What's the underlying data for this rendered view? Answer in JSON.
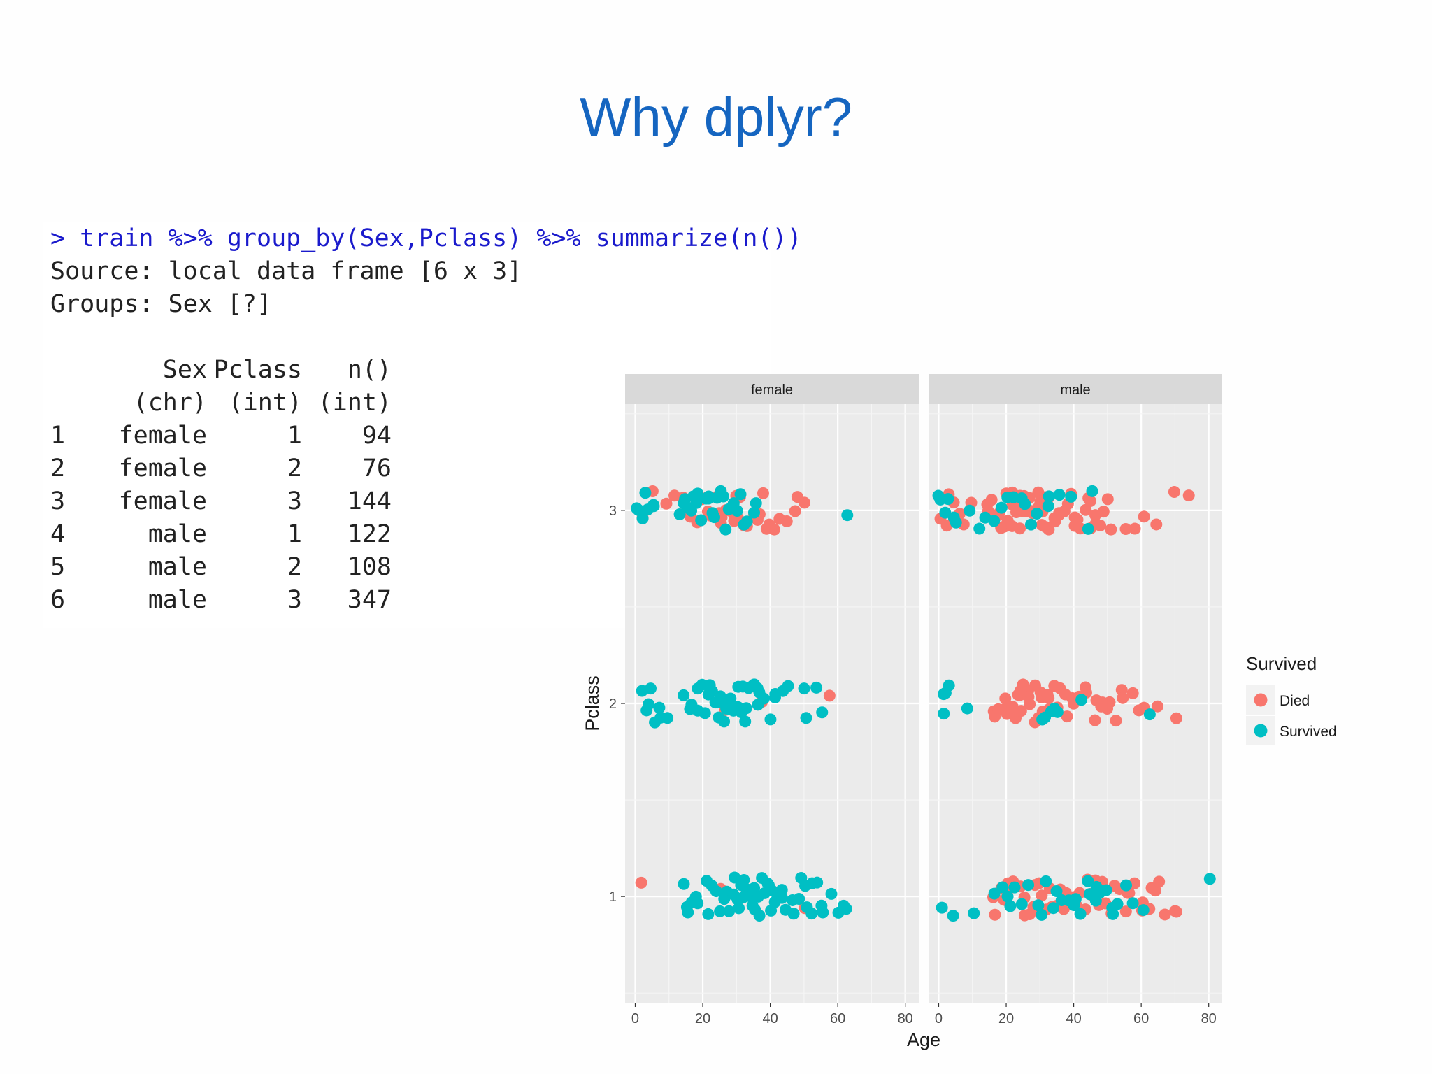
{
  "slide": {
    "title": "Why dplyr?"
  },
  "console": {
    "command": "> train %>% group_by(Sex,Pclass) %>% summarize(n())",
    "source_line": "Source: local data frame [6 x 3]",
    "groups_line": "Groups: Sex [?]",
    "columns": [
      "Sex",
      "Pclass",
      "n()"
    ],
    "column_types": [
      "(chr)",
      "(int)",
      "(int)"
    ],
    "rows": [
      {
        "idx": "1",
        "sex": "female",
        "pclass": "1",
        "n": "94"
      },
      {
        "idx": "2",
        "sex": "female",
        "pclass": "2",
        "n": "76"
      },
      {
        "idx": "3",
        "sex": "female",
        "pclass": "3",
        "n": "144"
      },
      {
        "idx": "4",
        "sex": "male",
        "pclass": "1",
        "n": "122"
      },
      {
        "idx": "5",
        "sex": "male",
        "pclass": "2",
        "n": "108"
      },
      {
        "idx": "6",
        "sex": "male",
        "pclass": "3",
        "n": "347"
      }
    ]
  },
  "chart_data": {
    "type": "scatter",
    "xlabel": "Age",
    "ylabel": "Pclass",
    "xlim": [
      -3,
      84
    ],
    "ylim": [
      0.45,
      3.55
    ],
    "xticks": [
      0,
      20,
      40,
      60,
      80
    ],
    "yticks": [
      1,
      2,
      3
    ],
    "grid": true,
    "facets": [
      "female",
      "male"
    ],
    "legend": {
      "title": "Survived",
      "position": "right",
      "entries": [
        {
          "name": "Died",
          "color": "#f8766d"
        },
        {
          "name": "Survived",
          "color": "#00bfc4"
        }
      ]
    },
    "jitter": 0.1,
    "groups": [
      {
        "panel": "female",
        "pclass": 3,
        "status": "Died",
        "ages": [
          2,
          5,
          9,
          12,
          14,
          16,
          18,
          19,
          20,
          21,
          22,
          22,
          23,
          24,
          25,
          25,
          26,
          27,
          28,
          29,
          30,
          30,
          31,
          32,
          33,
          35,
          36,
          37,
          38,
          39,
          40,
          41,
          43,
          45,
          47,
          48,
          50
        ]
      },
      {
        "panel": "female",
        "pclass": 3,
        "status": "Survived",
        "ages": [
          1,
          1,
          2,
          3,
          4,
          5,
          6,
          13,
          14,
          15,
          16,
          16,
          17,
          18,
          19,
          20,
          21,
          22,
          22,
          23,
          24,
          24,
          25,
          26,
          27,
          28,
          29,
          30,
          31,
          32,
          33,
          35,
          36,
          63
        ]
      },
      {
        "panel": "female",
        "pclass": 2,
        "status": "Died",
        "ages": [
          27,
          38,
          57
        ]
      },
      {
        "panel": "female",
        "pclass": 2,
        "status": "Survived",
        "ages": [
          2,
          3,
          4,
          5,
          6,
          7,
          8,
          10,
          14,
          16,
          17,
          18,
          19,
          20,
          21,
          22,
          22,
          23,
          24,
          24,
          25,
          25,
          26,
          27,
          27,
          28,
          28,
          29,
          29,
          30,
          30,
          31,
          31,
          32,
          32,
          33,
          34,
          35,
          35,
          36,
          36,
          37,
          38,
          40,
          41,
          42,
          44,
          45,
          50,
          51,
          54,
          55
        ]
      },
      {
        "panel": "female",
        "pclass": 1,
        "status": "Died",
        "ages": [
          2,
          25,
          50
        ]
      },
      {
        "panel": "female",
        "pclass": 1,
        "status": "Survived",
        "ages": [
          14,
          15,
          16,
          17,
          18,
          19,
          21,
          22,
          23,
          24,
          25,
          26,
          27,
          28,
          29,
          30,
          30,
          31,
          31,
          32,
          32,
          33,
          33,
          34,
          35,
          35,
          36,
          36,
          37,
          38,
          38,
          39,
          39,
          40,
          40,
          41,
          42,
          43,
          44,
          45,
          46,
          47,
          48,
          49,
          50,
          51,
          52,
          53,
          54,
          55,
          56,
          58,
          60,
          62,
          63
        ]
      },
      {
        "panel": "male",
        "pclass": 3,
        "status": "Died",
        "ages": [
          1,
          2,
          3,
          5,
          6,
          8,
          10,
          14,
          15,
          16,
          17,
          18,
          18,
          19,
          19,
          20,
          20,
          21,
          21,
          22,
          22,
          22,
          23,
          23,
          24,
          24,
          25,
          25,
          26,
          26,
          27,
          27,
          28,
          28,
          29,
          29,
          30,
          30,
          31,
          32,
          32,
          33,
          33,
          34,
          34,
          35,
          36,
          36,
          37,
          38,
          39,
          40,
          40,
          41,
          42,
          43,
          44,
          45,
          45,
          46,
          47,
          48,
          49,
          50,
          51,
          55,
          58,
          61,
          65,
          70,
          74
        ]
      },
      {
        "panel": "male",
        "pclass": 3,
        "status": "Survived",
        "ages": [
          0,
          1,
          2,
          3,
          4,
          5,
          9,
          12,
          14,
          16,
          19,
          20,
          22,
          25,
          26,
          27,
          29,
          32,
          33,
          36,
          39,
          44,
          45
        ]
      },
      {
        "panel": "male",
        "pclass": 2,
        "status": "Died",
        "ages": [
          16,
          17,
          18,
          19,
          20,
          20,
          21,
          22,
          22,
          23,
          23,
          24,
          24,
          25,
          25,
          26,
          27,
          27,
          28,
          28,
          29,
          30,
          30,
          31,
          32,
          32,
          33,
          34,
          35,
          36,
          37,
          38,
          39,
          40,
          42,
          43,
          44,
          46,
          47,
          48,
          49,
          50,
          51,
          52,
          54,
          55,
          57,
          59,
          61,
          65,
          70
        ]
      },
      {
        "panel": "male",
        "pclass": 2,
        "status": "Survived",
        "ages": [
          1,
          1,
          2,
          3,
          8,
          31,
          32,
          33,
          34,
          35,
          42,
          62
        ]
      },
      {
        "panel": "male",
        "pclass": 1,
        "status": "Died",
        "ages": [
          16,
          17,
          18,
          19,
          20,
          21,
          22,
          24,
          25,
          26,
          27,
          28,
          29,
          30,
          31,
          32,
          33,
          34,
          35,
          36,
          37,
          38,
          40,
          41,
          42,
          43,
          44,
          45,
          46,
          47,
          48,
          49,
          50,
          51,
          52,
          54,
          55,
          56,
          57,
          58,
          60,
          61,
          62,
          63,
          64,
          65,
          67,
          70,
          71
        ]
      },
      {
        "panel": "male",
        "pclass": 1,
        "status": "Survived",
        "ages": [
          1,
          4,
          11,
          17,
          19,
          20,
          21,
          23,
          25,
          27,
          29,
          31,
          32,
          34,
          35,
          36,
          38,
          40,
          41,
          42,
          44,
          45,
          46,
          47,
          48,
          49,
          50,
          51,
          52,
          53,
          55,
          57,
          61,
          80
        ]
      }
    ]
  }
}
